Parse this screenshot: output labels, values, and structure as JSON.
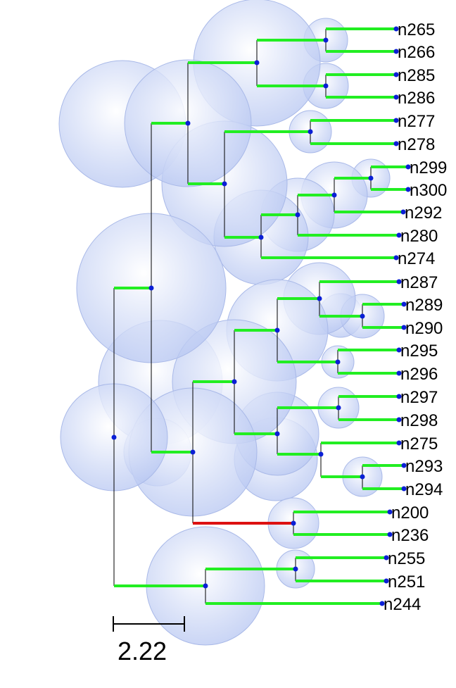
{
  "colors": {
    "branch": "#22ee22",
    "highlight_branch": "#dd1111",
    "node": "#0a1fd6",
    "bubble": "#b9c8f2"
  },
  "leaves": {
    "n265": "n265",
    "n266": "n266",
    "n285": "n285",
    "n286": "n286",
    "n277": "n277",
    "n278": "n278",
    "n299": "n299",
    "n300": "n300",
    "n292": "n292",
    "n280": "n280",
    "n274": "n274",
    "n287": "n287",
    "n289": "n289",
    "n290": "n290",
    "n295": "n295",
    "n296": "n296",
    "n297": "n297",
    "n298": "n298",
    "n275": "n275",
    "n293": "n293",
    "n294": "n294",
    "n200": "n200",
    "n236": "n236",
    "n255": "n255",
    "n251": "n251",
    "n244": "n244"
  },
  "scale_bar": {
    "label": "2.22"
  }
}
